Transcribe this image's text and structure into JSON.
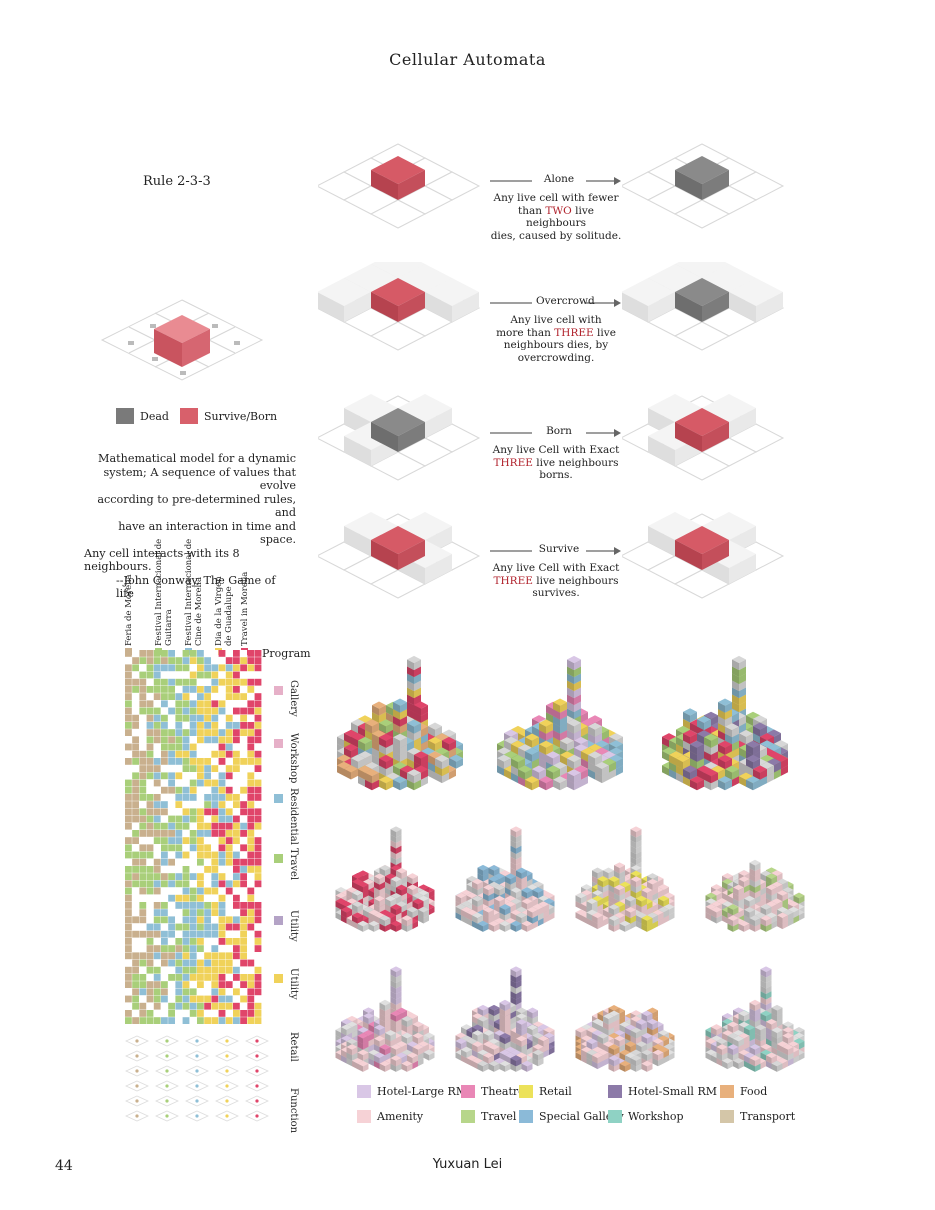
{
  "page": {
    "title": "Cellular Automata",
    "page_number": "44",
    "author": "Yuxuan Lei"
  },
  "rule": {
    "label": "Rule 2-3-3",
    "legend": [
      {
        "label": "Dead",
        "color": "#7a7a7a"
      },
      {
        "label": "Survive/Born",
        "color": "#d8606b"
      }
    ]
  },
  "quote": {
    "lines": [
      "Mathematical model for a dynamic",
      "system; A sequence of values that evolve",
      "according to pre-determined rules, and",
      "have an interaction in time and space.",
      "Any cell interacts with its 8 neighbours."
    ],
    "attribution": "--John Conway, The Game of life"
  },
  "rules": [
    {
      "name": "Alone",
      "before": "Any live cell with fewer",
      "pre": "than ",
      "highlight": "TWO",
      "post": " live neighbours",
      "after": "dies, caused by solitude."
    },
    {
      "name": "Overcrowd",
      "before": "Any live cell with",
      "pre": "more than ",
      "highlight": "THREE",
      "post": " live",
      "after": "neighbours dies, by overcrowding."
    },
    {
      "name": "Born",
      "before": "Any live Cell with Exact",
      "pre": "",
      "highlight": "THREE",
      "post": " live neighbours",
      "after": "borns."
    },
    {
      "name": "Survive",
      "before": "Any live Cell with Exact",
      "pre": "",
      "highlight": "THREE",
      "post": " live neighbours",
      "after": "survives."
    }
  ],
  "matrix": {
    "program_label": "Program",
    "columns": [
      {
        "label": "Feria de Morelia",
        "color": "#c9b08e"
      },
      {
        "label": "Festival Internacional de\nGuitarra",
        "color": "#a9cf7a"
      },
      {
        "label": "Festival Internacional de\nCine de Morelia",
        "color": "#8fbfd6"
      },
      {
        "label": "Dia de la Virgen\nde Guadalupe",
        "color": "#f0d25a"
      },
      {
        "label": "Travel in Morelia",
        "color": "#e0456a"
      }
    ],
    "row_labels": [
      "Gallery",
      "Workshop",
      "Residential",
      "Travel",
      "Utility",
      "Utility",
      "Retail",
      "Function"
    ]
  },
  "function_key": [
    {
      "label": "Hotel-Large RM",
      "color": "#d9c7e6"
    },
    {
      "label": "Theatre",
      "color": "#e987b6"
    },
    {
      "label": "Retail",
      "color": "#ece25a"
    },
    {
      "label": "Hotel-Small RM",
      "color": "#8c7aa8"
    },
    {
      "label": "Food",
      "color": "#e8b07c"
    },
    {
      "label": "Amenity",
      "color": "#f6d2d6"
    },
    {
      "label": "Travel",
      "color": "#b7d68a"
    },
    {
      "label": "Special Gallery",
      "color": "#8bbad8"
    },
    {
      "label": "Workshop",
      "color": "#8fd2c4"
    },
    {
      "label": "Transport",
      "color": "#d4c6a8"
    }
  ]
}
